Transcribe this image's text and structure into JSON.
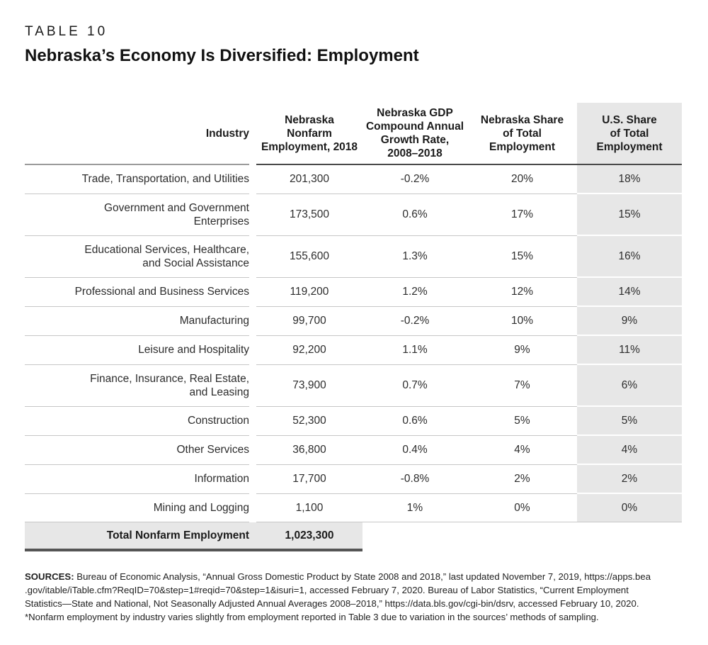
{
  "page": {
    "eyebrow": "TABLE 10",
    "title": "Nebraska’s Economy Is Diversified: Employment"
  },
  "colors": {
    "highlight_fill": "#e7e7e7",
    "rule_light": "#c6c6c6",
    "rule_dark": "#4a4a4a",
    "industry_rule": "#9b9b9b",
    "total_rule": "#555555",
    "text": "#1d1d1d"
  },
  "table": {
    "columns": [
      {
        "label": "Industry"
      },
      {
        "label": "Nebraska\nNonfarm\nEmployment, 2018"
      },
      {
        "label": "Nebraska GDP\nCompound Annual\nGrowth Rate,\n2008–2018"
      },
      {
        "label": "Nebraska Share\nof Total\nEmployment"
      },
      {
        "label": "U.S. Share\nof Total\nEmployment"
      }
    ],
    "rows": [
      {
        "industry": "Trade, Transportation, and Utilities",
        "employment": "201,300",
        "cagr": "-0.2%",
        "ne_share": "20%",
        "us_share": "18%"
      },
      {
        "industry": "Government and Government\nEnterprises",
        "employment": "173,500",
        "cagr": "0.6%",
        "ne_share": "17%",
        "us_share": "15%"
      },
      {
        "industry": "Educational Services, Healthcare,\nand Social Assistance",
        "employment": "155,600",
        "cagr": "1.3%",
        "ne_share": "15%",
        "us_share": "16%"
      },
      {
        "industry": "Professional and Business Services",
        "employment": "119,200",
        "cagr": "1.2%",
        "ne_share": "12%",
        "us_share": "14%"
      },
      {
        "industry": "Manufacturing",
        "employment": "99,700",
        "cagr": "-0.2%",
        "ne_share": "10%",
        "us_share": "9%"
      },
      {
        "industry": "Leisure and Hospitality",
        "employment": "92,200",
        "cagr": "1.1%",
        "ne_share": "9%",
        "us_share": "11%"
      },
      {
        "industry": "Finance, Insurance, Real Estate,\nand Leasing",
        "employment": "73,900",
        "cagr": "0.7%",
        "ne_share": "7%",
        "us_share": "6%"
      },
      {
        "industry": "Construction",
        "employment": "52,300",
        "cagr": "0.6%",
        "ne_share": "5%",
        "us_share": "5%"
      },
      {
        "industry": "Other Services",
        "employment": "36,800",
        "cagr": "0.4%",
        "ne_share": "4%",
        "us_share": "4%"
      },
      {
        "industry": "Information",
        "employment": "17,700",
        "cagr": "-0.8%",
        "ne_share": "2%",
        "us_share": "2%"
      },
      {
        "industry": "Mining and Logging",
        "employment": "1,100",
        "cagr": "1%",
        "ne_share": "0%",
        "us_share": "0%"
      }
    ],
    "total": {
      "label": "Total Nonfarm Employment",
      "value": "1,023,300"
    }
  },
  "footer": {
    "sources_label": "SOURCES:",
    "lines": [
      "Bureau of Economic Analysis, “Annual Gross Domestic Product by State 2008 and 2018,” last updated November 7, 2019, https://apps.bea",
      ".gov/itable/iTable.cfm?ReqID=70&step=1#reqid=70&step=1&isuri=1, accessed February 7, 2020. Bureau of Labor Statistics, “Current Employment",
      "Statistics—State and National, Not Seasonally Adjusted Annual Averages 2008–2018,” https://data.bls.gov/cgi-bin/dsrv, accessed February 10, 2020."
    ],
    "note": "*Nonfarm employment by industry varies slightly from employment reported in Table 3 due to variation in the sources’ methods of sampling."
  }
}
